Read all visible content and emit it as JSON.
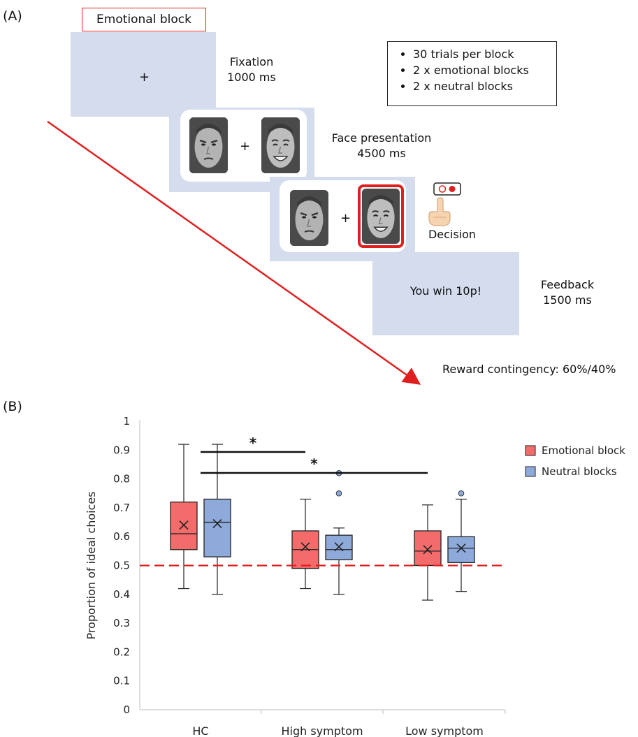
{
  "panel_a": {
    "label": "(A)",
    "block_label": "Emotional block",
    "fixation": {
      "name": "Fixation",
      "duration": "1000 ms",
      "symbol": "+"
    },
    "face_presentation": {
      "name": "Face presentation",
      "duration": "4500 ms",
      "symbol": "+"
    },
    "decision": {
      "name": "Decision",
      "symbol": "+"
    },
    "feedback": {
      "name": "Feedback",
      "duration": "1500 ms",
      "message": "You win 10p!"
    },
    "info": [
      "30 trials per block",
      "2 x emotional blocks",
      "2 x neutral blocks"
    ],
    "contingency": "Reward contingency: 60%/40%",
    "colors": {
      "screen": "#d4dced",
      "arrow": "#e02020"
    }
  },
  "panel_b": {
    "label": "(B)"
  },
  "chart_data": {
    "type": "boxplot",
    "title": "",
    "xlabel": "",
    "ylabel": "Proportion of ideal choices",
    "ylim": [
      0,
      1
    ],
    "yticks": [
      "0",
      "0.1",
      "0.2",
      "0.3",
      "0.4",
      "0.5",
      "0.6",
      "0.7",
      "0.8",
      "0.9",
      "1"
    ],
    "categories": [
      "HC",
      "High symptom",
      "Low symptom"
    ],
    "reference_line": {
      "y": 0.5,
      "style": "dashed",
      "color": "#e02020"
    },
    "legend_position": "right",
    "significance": [
      {
        "from": "HC",
        "to": "High symptom",
        "label": "*"
      },
      {
        "from": "HC",
        "to": "Low symptom",
        "label": "*"
      }
    ],
    "series": [
      {
        "name": "Emotional block",
        "color": "#f46b6b",
        "boxes": [
          {
            "min": 0.42,
            "q1": 0.555,
            "median": 0.61,
            "q3": 0.72,
            "max": 0.92,
            "mean": 0.64,
            "outliers": []
          },
          {
            "min": 0.42,
            "q1": 0.49,
            "median": 0.555,
            "q3": 0.62,
            "max": 0.73,
            "mean": 0.565,
            "outliers": []
          },
          {
            "min": 0.38,
            "q1": 0.5,
            "median": 0.55,
            "q3": 0.62,
            "max": 0.71,
            "mean": 0.555,
            "outliers": []
          }
        ]
      },
      {
        "name": "Neutral blocks",
        "color": "#8eaadb",
        "boxes": [
          {
            "min": 0.4,
            "q1": 0.53,
            "median": 0.65,
            "q3": 0.73,
            "max": 0.92,
            "mean": 0.645,
            "outliers": []
          },
          {
            "min": 0.4,
            "q1": 0.52,
            "median": 0.555,
            "q3": 0.605,
            "max": 0.63,
            "mean": 0.565,
            "outliers": [
              0.75,
              0.82
            ]
          },
          {
            "min": 0.41,
            "q1": 0.51,
            "median": 0.56,
            "q3": 0.6,
            "max": 0.73,
            "mean": 0.56,
            "outliers": [
              0.75
            ]
          }
        ]
      }
    ]
  }
}
